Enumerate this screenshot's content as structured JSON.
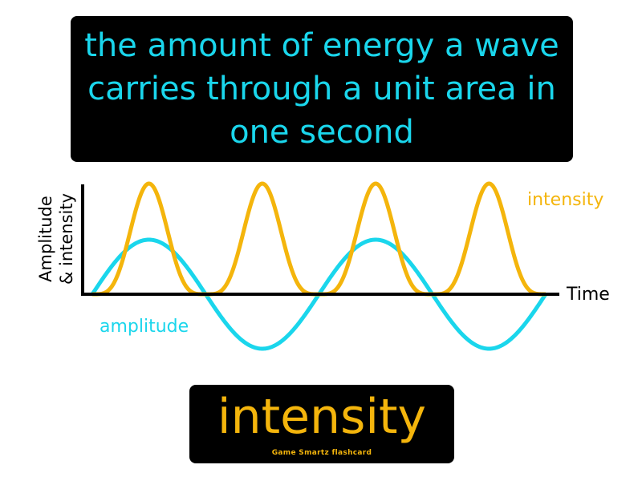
{
  "definition": "the amount of energy a wave carries through a unit area in one second",
  "term": "intensity",
  "credit": "Game Smartz flashcard",
  "diagram": {
    "y_axis_label_line1": "Amplitude",
    "y_axis_label_line2": "& intensity",
    "x_axis_label": "Time",
    "intensity_label": "intensity",
    "amplitude_label": "amplitude"
  },
  "colors": {
    "amplitude": "#1ad6ec",
    "intensity": "#f4b50c",
    "background": "#000000"
  }
}
